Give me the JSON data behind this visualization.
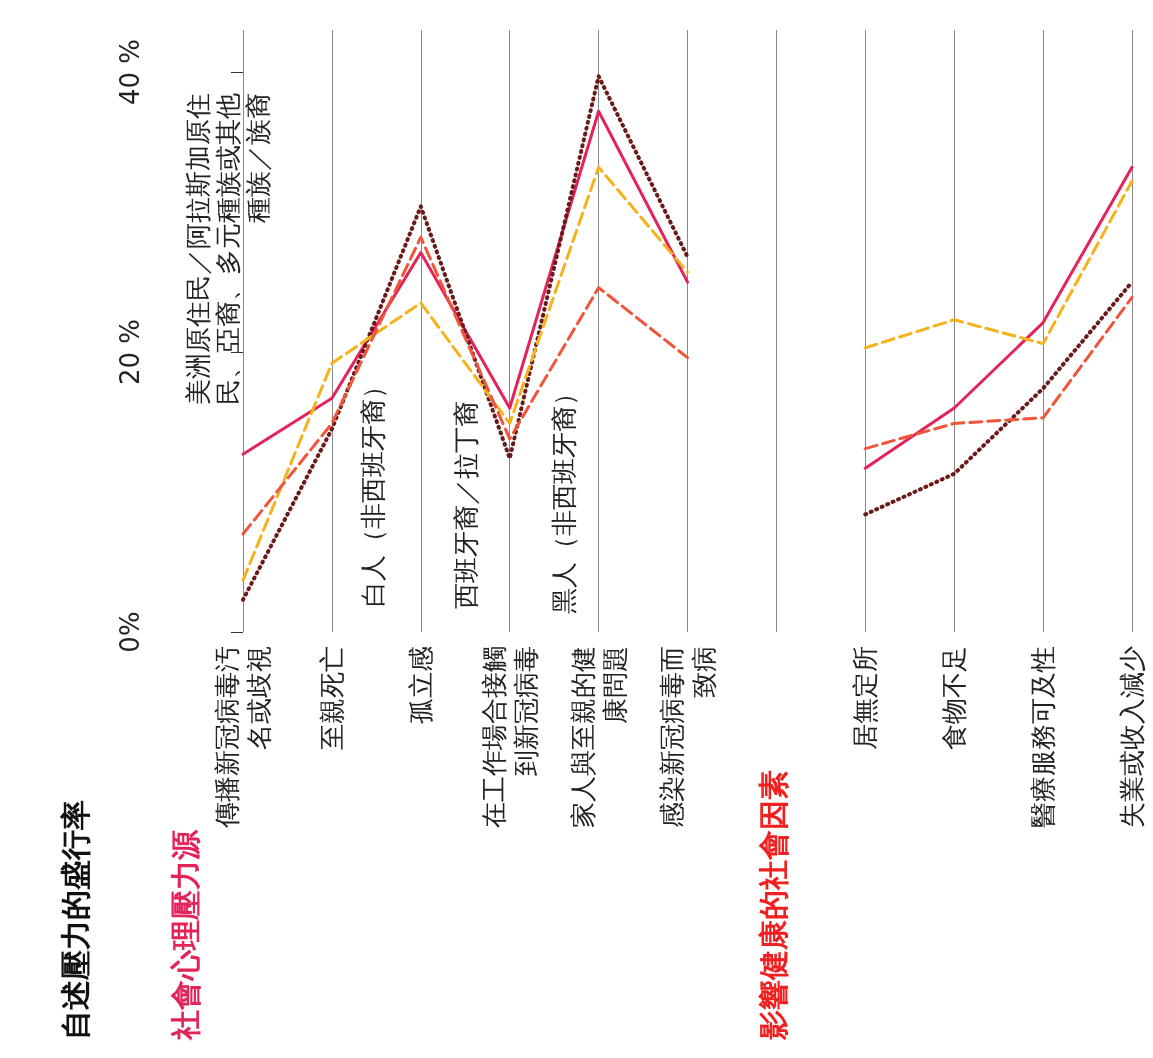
{
  "chart_data": {
    "type": "line",
    "title": "自述壓力的盛行率",
    "subtitle": "社會心理壓力源",
    "annotations": [
      "影響健康的社會因素"
    ],
    "categories": [
      "傳播新冠病毒汚名或歧視",
      "至親死亡",
      "孤立感",
      "在工作場合接觸到新冠病毒",
      "家人與至親的健康問題",
      "感染新冠病毒而致病",
      null,
      "居無定所",
      "食物不足",
      "醫療服務可及性",
      "失業或收入減少"
    ],
    "series": [
      {
        "name": "美洲原住民／阿拉斯加原住民、亞裔、多元種族或其他種族／族裔",
        "color": "#e3245a",
        "line_style": "solid",
        "values": [
          12.7,
          16.7,
          27.1,
          16.0,
          37.2,
          25.0,
          null,
          11.7,
          16.0,
          22.1,
          33.2
        ]
      },
      {
        "name": "白人（非西班牙裔）",
        "color": "#6b1a1a",
        "line_style": "dotted",
        "values": [
          2.3,
          14.5,
          30.4,
          12.4,
          39.7,
          26.8,
          null,
          8.4,
          11.3,
          17.4,
          25.0
        ]
      },
      {
        "name": "西班牙裔／拉丁裔",
        "color": "#f5b21c",
        "line_style": "dashed",
        "values": [
          3.7,
          19.2,
          23.5,
          14.9,
          33.2,
          25.7,
          null,
          20.3,
          22.3,
          20.6,
          32.2
        ]
      },
      {
        "name": "黑人（非西班牙裔）",
        "color": "#f0553a",
        "line_style": "dashed",
        "values": [
          7.0,
          14.9,
          28.2,
          13.8,
          24.6,
          19.6,
          null,
          13.1,
          14.9,
          15.3,
          23.9
        ]
      }
    ],
    "ylim": [
      0,
      43
    ],
    "yticks": [
      {
        "value": 0,
        "label": "0%"
      },
      {
        "value": 20,
        "label": "20 %"
      },
      {
        "value": 40,
        "label": "40 %"
      }
    ],
    "grid": "x",
    "legend": false,
    "marker": "none"
  }
}
